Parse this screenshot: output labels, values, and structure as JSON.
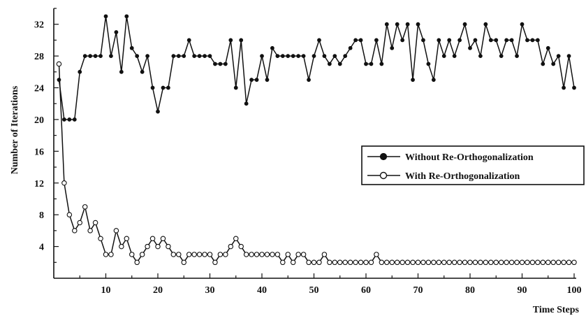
{
  "chart_data": {
    "type": "line",
    "xlabel": "Time Steps",
    "ylabel": "Number of Iterations",
    "xlim": [
      0,
      100
    ],
    "ylim": [
      0,
      34
    ],
    "x_ticks": [
      10,
      20,
      30,
      40,
      50,
      60,
      70,
      80,
      90,
      100
    ],
    "y_ticks": [
      4,
      8,
      12,
      16,
      20,
      24,
      28,
      32
    ],
    "grid": false,
    "legend_position": "right",
    "x": [
      1,
      2,
      3,
      4,
      5,
      6,
      7,
      8,
      9,
      10,
      11,
      12,
      13,
      14,
      15,
      16,
      17,
      18,
      19,
      20,
      21,
      22,
      23,
      24,
      25,
      26,
      27,
      28,
      29,
      30,
      31,
      32,
      33,
      34,
      35,
      36,
      37,
      38,
      39,
      40,
      41,
      42,
      43,
      44,
      45,
      46,
      47,
      48,
      49,
      50,
      51,
      52,
      53,
      54,
      55,
      56,
      57,
      58,
      59,
      60,
      61,
      62,
      63,
      64,
      65,
      66,
      67,
      68,
      69,
      70,
      71,
      72,
      73,
      74,
      75,
      76,
      77,
      78,
      79,
      80,
      81,
      82,
      83,
      84,
      85,
      86,
      87,
      88,
      89,
      90,
      91,
      92,
      93,
      94,
      95,
      96,
      97,
      98,
      99,
      100
    ],
    "series": [
      {
        "name": "Without Re-Orthogonalization",
        "marker": "filled-circle",
        "color": "#111111",
        "values": [
          25,
          20,
          20,
          20,
          26,
          28,
          28,
          28,
          28,
          33,
          28,
          31,
          26,
          33,
          29,
          28,
          26,
          28,
          24,
          21,
          24,
          24,
          28,
          28,
          28,
          30,
          28,
          28,
          28,
          28,
          27,
          27,
          27,
          30,
          24,
          30,
          22,
          25,
          25,
          28,
          25,
          29,
          28,
          28,
          28,
          28,
          28,
          28,
          25,
          28,
          30,
          28,
          27,
          28,
          27,
          28,
          29,
          30,
          30,
          27,
          27,
          30,
          27,
          32,
          29,
          32,
          30,
          32,
          25,
          32,
          30,
          27,
          25,
          30,
          28,
          30,
          28,
          30,
          32,
          29,
          30,
          28,
          32,
          30,
          30,
          28,
          30,
          30,
          28,
          32,
          30,
          30,
          30,
          27,
          29,
          27,
          28,
          24,
          28,
          24
        ]
      },
      {
        "name": "With Re-Orthogonalization",
        "marker": "open-circle",
        "color": "#111111",
        "values": [
          27,
          12,
          8,
          6,
          7,
          9,
          6,
          7,
          5,
          3,
          3,
          6,
          4,
          5,
          3,
          2,
          3,
          4,
          5,
          4,
          5,
          4,
          3,
          3,
          2,
          3,
          3,
          3,
          3,
          3,
          2,
          3,
          3,
          4,
          5,
          4,
          3,
          3,
          3,
          3,
          3,
          3,
          3,
          2,
          3,
          2,
          3,
          3,
          2,
          2,
          2,
          3,
          2,
          2,
          2,
          2,
          2,
          2,
          2,
          2,
          2,
          3,
          2,
          2,
          2,
          2,
          2,
          2,
          2,
          2,
          2,
          2,
          2,
          2,
          2,
          2,
          2,
          2,
          2,
          2,
          2,
          2,
          2,
          2,
          2,
          2,
          2,
          2,
          2,
          2,
          2,
          2,
          2,
          2,
          2,
          2,
          2,
          2,
          2,
          2
        ]
      }
    ]
  }
}
